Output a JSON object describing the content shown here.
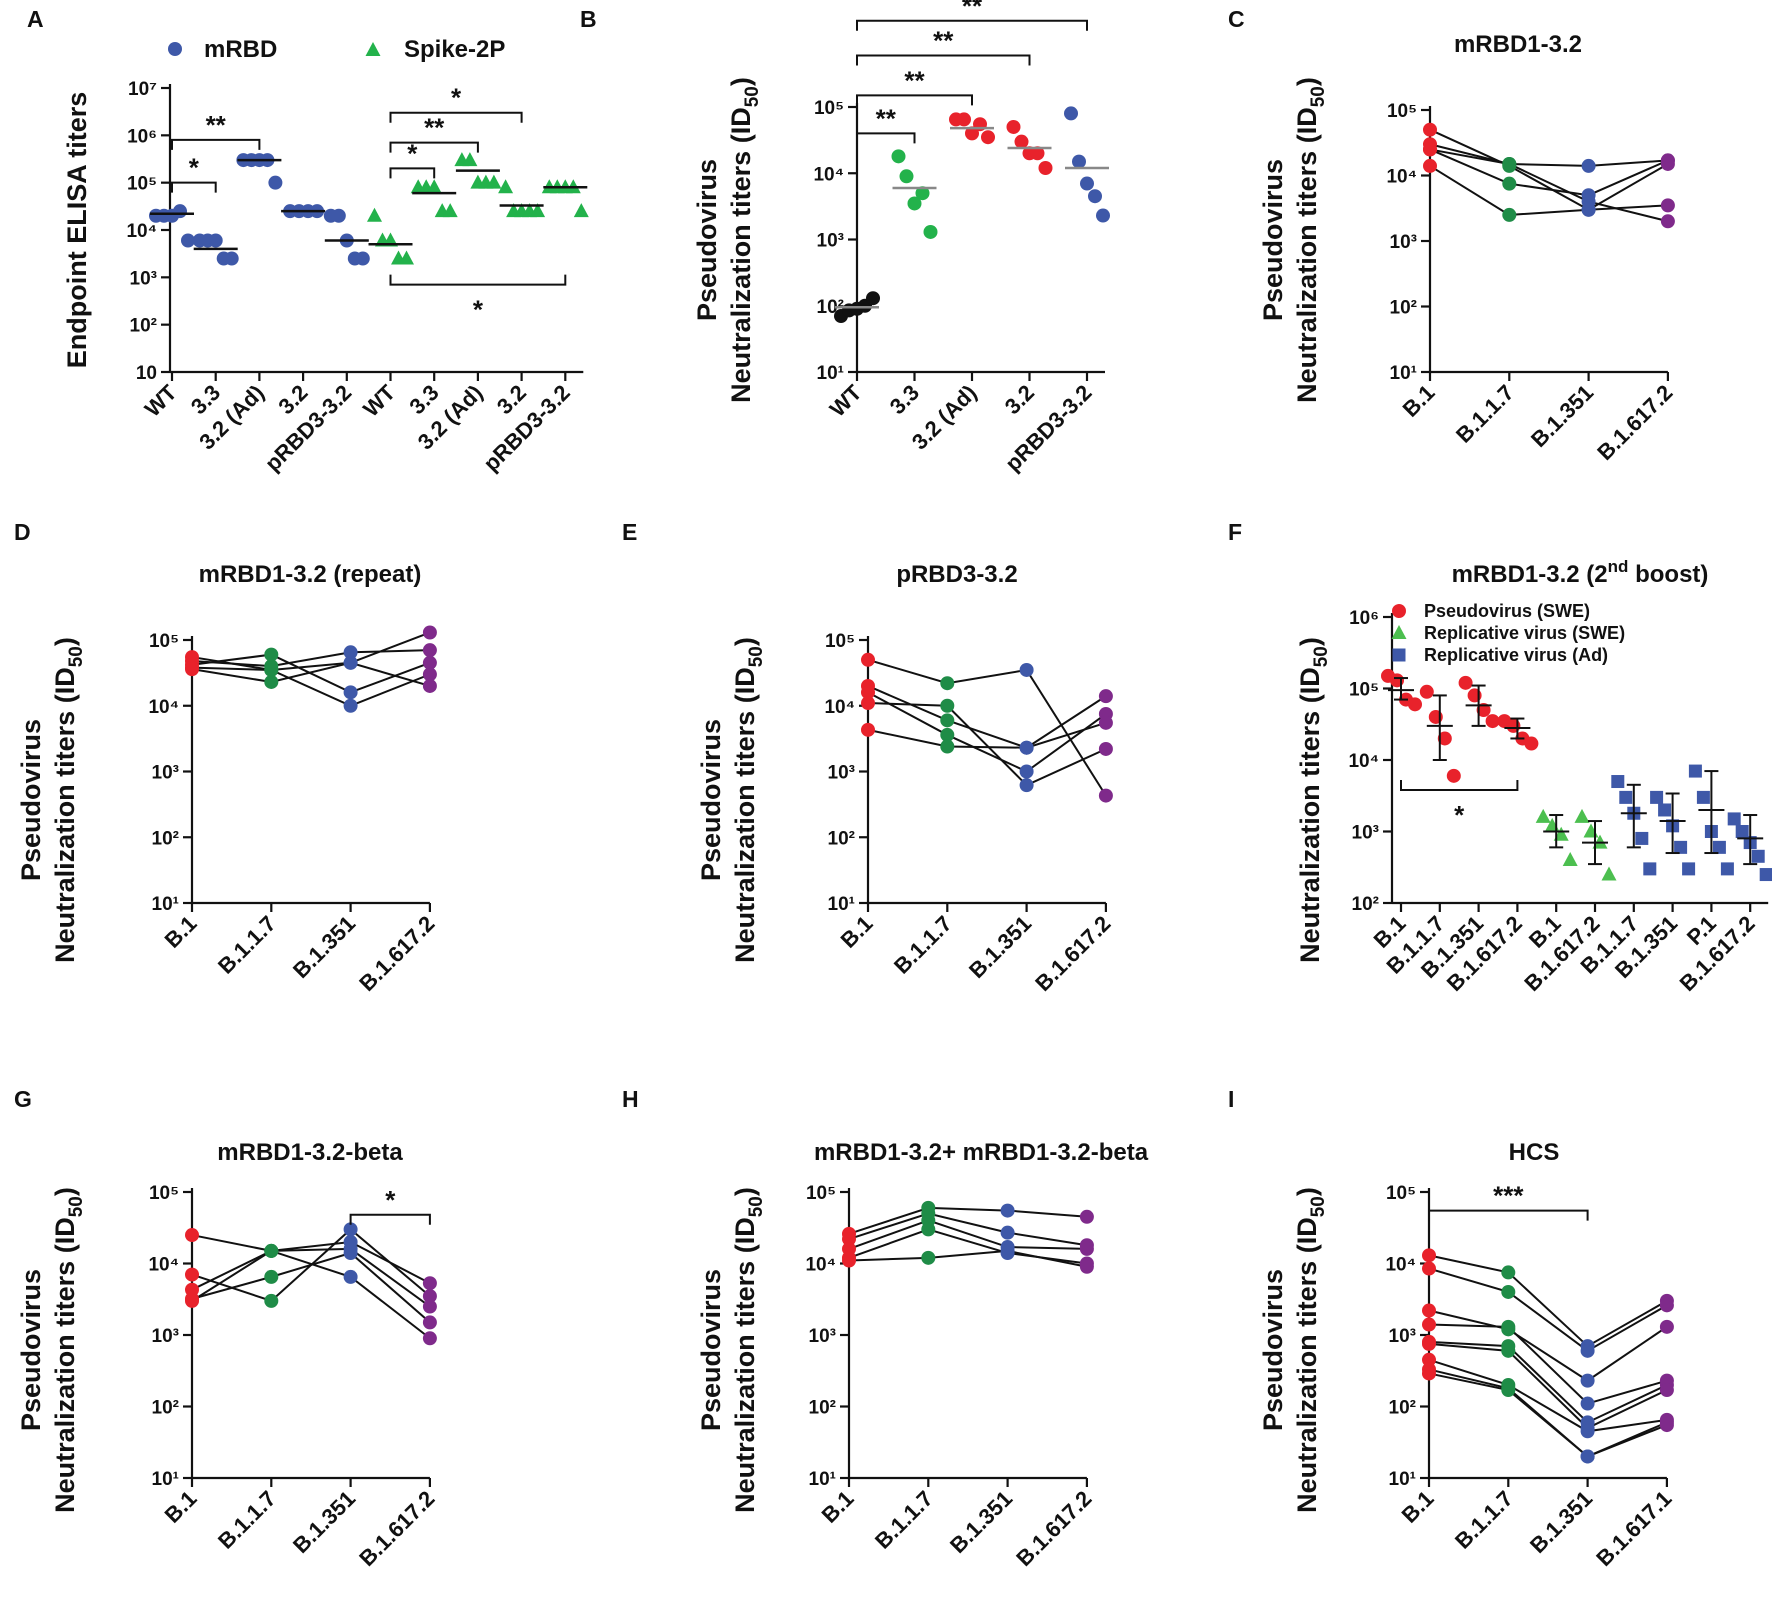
{
  "colors": {
    "red": "#e8222b",
    "green": "#23b24b",
    "darkgreen": "#1f8c47",
    "blue": "#3e58a8",
    "purple": "#7f2a8b",
    "black": "#111111",
    "gray": "#888888",
    "lightgreen": "#4cbf4f"
  },
  "chart_data": [
    {
      "panel": "A",
      "type": "scatter",
      "title": "",
      "ylabel": "Endpoint ELISA titers",
      "yscale": "log",
      "ylim": [
        10,
        10000000
      ],
      "yticks": [
        "10",
        "10²",
        "10³",
        "10⁴",
        "10⁵",
        "10⁶",
        "10⁷"
      ],
      "categories": [
        "WT",
        "3.3",
        "3.2 (Ad)",
        "3.2",
        "pRBD3-3.2",
        "WT",
        "3.3",
        "3.2 (Ad)",
        "3.2",
        "pRBD3-3.2"
      ],
      "legend": [
        "mRBD",
        "Spike-2P"
      ],
      "series": [
        {
          "name": "mRBD",
          "marker": "circle",
          "color": "blue",
          "groups": [
            {
              "cat": 0,
              "values": [
                20000,
                20000,
                20000,
                25000,
                6000
              ],
              "median": 22000
            },
            {
              "cat": 1,
              "values": [
                6000,
                6000,
                6000,
                2500,
                2500
              ],
              "median": 4000
            },
            {
              "cat": 2,
              "values": [
                300000,
                300000,
                300000,
                300000,
                100000
              ],
              "median": 300000
            },
            {
              "cat": 3,
              "values": [
                25000,
                25000,
                25000,
                25000
              ],
              "median": 25000
            },
            {
              "cat": 4,
              "values": [
                20000,
                20000,
                6000,
                2500,
                2500
              ],
              "median": 6000
            }
          ]
        },
        {
          "name": "Spike-2P",
          "marker": "triangle",
          "color": "green",
          "groups": [
            {
              "cat": 5,
              "values": [
                20000,
                6000,
                6000,
                2500,
                2500
              ],
              "median": 5000
            },
            {
              "cat": 6,
              "values": [
                80000,
                80000,
                80000,
                25000,
                25000
              ],
              "median": 60000
            },
            {
              "cat": 7,
              "values": [
                300000,
                300000,
                100000,
                100000,
                100000
              ],
              "median": 180000
            },
            {
              "cat": 8,
              "values": [
                80000,
                25000,
                25000,
                25000,
                25000
              ],
              "median": 33000
            },
            {
              "cat": 9,
              "values": [
                80000,
                80000,
                80000,
                80000,
                25000
              ],
              "median": 80000
            }
          ]
        }
      ],
      "sig": [
        {
          "from": 0,
          "to": 1,
          "level": 100000,
          "label": "*",
          "dir": "up"
        },
        {
          "from": 0,
          "to": 2,
          "level": 800000,
          "label": "**",
          "dir": "up"
        },
        {
          "from": 5,
          "to": 6,
          "level": 200000,
          "label": "*",
          "dir": "up"
        },
        {
          "from": 5,
          "to": 7,
          "level": 700000,
          "label": "**",
          "dir": "up"
        },
        {
          "from": 5,
          "to": 8,
          "level": 3000000,
          "label": "*",
          "dir": "up"
        },
        {
          "from": 5,
          "to": 9,
          "level": 700,
          "label": "*",
          "dir": "down"
        }
      ]
    },
    {
      "panel": "B",
      "type": "scatter",
      "title": "",
      "ylabel": [
        "Pseudovirus",
        "Neutralization titers (ID",
        "50",
        ")"
      ],
      "yscale": "log",
      "ylim": [
        10,
        100000
      ],
      "yticks": [
        "10¹",
        "10²",
        "10³",
        "10⁴",
        "10⁵"
      ],
      "categories": [
        "WT",
        "3.3",
        "3.2 (Ad)",
        "3.2",
        "pRBD3-3.2"
      ],
      "series": [
        {
          "name": "WT",
          "color": "black",
          "groups": [
            {
              "cat": 0,
              "values": [
                70,
                85,
                90,
                100,
                130
              ],
              "median": 95
            }
          ]
        },
        {
          "name": "3.3",
          "color": "green",
          "groups": [
            {
              "cat": 1,
              "values": [
                18000,
                9000,
                3500,
                5000,
                1300
              ],
              "median": 6000
            }
          ]
        },
        {
          "name": "3.2 (Ad)",
          "color": "red",
          "groups": [
            {
              "cat": 2,
              "values": [
                65000,
                65000,
                40000,
                55000,
                35000
              ],
              "median": 48000
            }
          ]
        },
        {
          "name": "3.2",
          "color": "red",
          "groups": [
            {
              "cat": 3,
              "values": [
                50000,
                30000,
                20000,
                20000,
                12000
              ],
              "median": 24000
            }
          ]
        },
        {
          "name": "pRBD3-3.2",
          "color": "blue",
          "groups": [
            {
              "cat": 4,
              "values": [
                80000,
                15000,
                7000,
                4500,
                2300
              ],
              "median": 12000
            }
          ]
        }
      ],
      "sig": [
        {
          "from": 0,
          "to": 1,
          "level": 40000,
          "label": "**",
          "dir": "up"
        },
        {
          "from": 0,
          "to": 2,
          "level": 150000,
          "label": "**",
          "dir": "up"
        },
        {
          "from": 0,
          "to": 3,
          "level": 600000,
          "label": "**",
          "dir": "up"
        },
        {
          "from": 0,
          "to": 4,
          "level": 2000000,
          "label": "**",
          "dir": "up"
        }
      ]
    },
    {
      "panel": "C",
      "type": "line",
      "title": "mRBD1-3.2",
      "ylabel": [
        "Pseudovirus",
        "Neutralization titers (ID",
        "50",
        ")"
      ],
      "yscale": "log",
      "ylim": [
        10,
        100000
      ],
      "yticks": [
        "10¹",
        "10²",
        "10³",
        "10⁴",
        "10⁵"
      ],
      "categories": [
        "B.1",
        "B.1.1.7",
        "B.1.351",
        "B.1.617.2"
      ],
      "catColors": [
        "red",
        "darkgreen",
        "blue",
        "purple"
      ],
      "series": [
        {
          "values": [
            50000,
            14000,
            3000,
            3500
          ]
        },
        {
          "values": [
            30000,
            15000,
            4000,
            2000
          ]
        },
        {
          "values": [
            25000,
            7500,
            5000,
            17000
          ]
        },
        {
          "values": [
            14000,
            2500,
            3000,
            15000
          ]
        },
        {
          "values": [
            25000,
            15000,
            14000,
            17000
          ]
        }
      ]
    },
    {
      "panel": "D",
      "type": "line",
      "title": "mRBD1-3.2 (repeat)",
      "ylabel": [
        "Pseudovirus",
        "Neutralization titers (ID",
        "50",
        ")"
      ],
      "yscale": "log",
      "ylim": [
        10,
        100000
      ],
      "yticks": [
        "10¹",
        "10²",
        "10³",
        "10⁴",
        "10⁵"
      ],
      "categories": [
        "B.1",
        "B.1.1.7",
        "B.1.351",
        "B.1.617.2"
      ],
      "catColors": [
        "red",
        "darkgreen",
        "blue",
        "purple"
      ],
      "series": [
        {
          "values": [
            55000,
            35000,
            45000,
            130000
          ]
        },
        {
          "values": [
            48000,
            40000,
            65000,
            70000
          ]
        },
        {
          "values": [
            42000,
            60000,
            16000,
            45000
          ]
        },
        {
          "values": [
            38000,
            35000,
            10000,
            30000
          ]
        },
        {
          "values": [
            36000,
            23000,
            45000,
            20000
          ]
        }
      ]
    },
    {
      "panel": "E",
      "type": "line",
      "title": "pRBD3-3.2",
      "ylabel": [
        "Pseudovirus",
        "Neutralization titers (ID",
        "50",
        ")"
      ],
      "yscale": "log",
      "ylim": [
        10,
        100000
      ],
      "yticks": [
        "10¹",
        "10²",
        "10³",
        "10⁴",
        "10⁵"
      ],
      "categories": [
        "B.1",
        "B.1.1.7",
        "B.1.351",
        "B.1.617.2"
      ],
      "catColors": [
        "red",
        "darkgreen",
        "blue",
        "purple"
      ],
      "series": [
        {
          "values": [
            50000,
            22000,
            35000,
            430
          ]
        },
        {
          "values": [
            20000,
            6000,
            2300,
            14000
          ]
        },
        {
          "values": [
            16000,
            3600,
            1000,
            7500
          ]
        },
        {
          "values": [
            11000,
            10000,
            620,
            2200
          ]
        },
        {
          "values": [
            4300,
            2400,
            2300,
            5500
          ]
        }
      ]
    },
    {
      "panel": "F",
      "type": "scatter",
      "title": "mRBD1-3.2 (2",
      "title_sup": "nd",
      "title_end": " boost)",
      "ylabel": "Neutralization titers (ID",
      "ylabel_sub": "50",
      "ylabel_end": ")",
      "yscale": "log",
      "ylim": [
        100,
        1000000
      ],
      "yticks": [
        "10²",
        "10³",
        "10⁴",
        "10⁵",
        "10⁶"
      ],
      "categories": [
        "B.1",
        "B.1.1.7",
        "B.1.351",
        "B.1.617.2",
        "B.1",
        "B.1.617.2",
        "B.1.1.7",
        "B.1.351",
        "P.1",
        "B.1.617.2"
      ],
      "legend": [
        "Pseudovirus (SWE)",
        "Replicative virus (SWE)",
        "Replicative virus (Ad)"
      ],
      "series": [
        {
          "name": "Pseudovirus (SWE)",
          "marker": "circle",
          "color": "red",
          "groups": [
            {
              "cat": 0,
              "values": [
                150000,
                130000,
                70000,
                60000
              ],
              "mean": 95000,
              "sd": [
                70000,
                140000
              ]
            },
            {
              "cat": 1,
              "values": [
                90000,
                40000,
                20000,
                6000
              ],
              "mean": 30000,
              "sd": [
                10000,
                80000
              ]
            },
            {
              "cat": 2,
              "values": [
                120000,
                80000,
                50000,
                35000
              ],
              "mean": 58000,
              "sd": [
                30000,
                110000
              ]
            },
            {
              "cat": 3,
              "values": [
                35000,
                30000,
                20000,
                17000
              ],
              "mean": 28000,
              "sd": [
                20000,
                38000
              ]
            }
          ]
        },
        {
          "name": "Replicative virus (SWE)",
          "marker": "triangle",
          "color": "lightgreen",
          "groups": [
            {
              "cat": 4,
              "values": [
                1600,
                1200,
                900,
                400
              ],
              "mean": 1000,
              "sd": [
                600,
                1700
              ]
            },
            {
              "cat": 5,
              "values": [
                1600,
                1000,
                700,
                250
              ],
              "mean": 700,
              "sd": [
                350,
                1400
              ]
            }
          ]
        },
        {
          "name": "Replicative virus (Ad)",
          "marker": "square",
          "color": "blue",
          "groups": [
            {
              "cat": 6,
              "values": [
                5000,
                3000,
                1800,
                800,
                300
              ],
              "mean": 1800,
              "sd": [
                600,
                4500
              ]
            },
            {
              "cat": 7,
              "values": [
                3000,
                2000,
                1200,
                600,
                300
              ],
              "mean": 1400,
              "sd": [
                500,
                3400
              ]
            },
            {
              "cat": 8,
              "values": [
                7000,
                3000,
                1000,
                600,
                300
              ],
              "mean": 2000,
              "sd": [
                500,
                7000
              ]
            },
            {
              "cat": 9,
              "values": [
                1500,
                1000,
                700,
                450,
                250
              ],
              "mean": 800,
              "sd": [
                350,
                1700
              ]
            }
          ]
        }
      ],
      "sig": [
        {
          "from": 0,
          "to": 3,
          "level": 3800,
          "label": "*",
          "dir": "down"
        }
      ]
    },
    {
      "panel": "G",
      "type": "line",
      "title": "mRBD1-3.2-beta",
      "ylabel": [
        "Pseudovirus",
        "Neutralization titers (ID",
        "50",
        ")"
      ],
      "yscale": "log",
      "ylim": [
        10,
        100000
      ],
      "yticks": [
        "10¹",
        "10²",
        "10³",
        "10⁴",
        "10⁵"
      ],
      "categories": [
        "B.1",
        "B.1.1.7",
        "B.1.351",
        "B.1.617.2"
      ],
      "catColors": [
        "red",
        "darkgreen",
        "blue",
        "purple"
      ],
      "series": [
        {
          "values": [
            25000,
            15000,
            20000,
            5300
          ]
        },
        {
          "values": [
            7000,
            3000,
            30000,
            3500
          ]
        },
        {
          "values": [
            4300,
            15000,
            16000,
            2500
          ]
        },
        {
          "values": [
            3200,
            6500,
            14000,
            1500
          ]
        },
        {
          "values": [
            3000,
            15000,
            6500,
            900
          ]
        }
      ],
      "sig": [
        {
          "from": 2,
          "to": 3,
          "level": 48000,
          "label": "*",
          "dir": "up"
        }
      ]
    },
    {
      "panel": "H",
      "type": "line",
      "title": "mRBD1-3.2+ mRBD1-3.2-beta",
      "ylabel": [
        "Pseudovirus",
        "Neutralization titers (ID",
        "50",
        ")"
      ],
      "yscale": "log",
      "ylim": [
        10,
        100000
      ],
      "yticks": [
        "10¹",
        "10²",
        "10³",
        "10⁴",
        "10⁵"
      ],
      "categories": [
        "B.1",
        "B.1.1.7",
        "B.1.351",
        "B.1.617.2"
      ],
      "catColors": [
        "red",
        "darkgreen",
        "blue",
        "purple"
      ],
      "series": [
        {
          "values": [
            26000,
            60000,
            55000,
            45000
          ]
        },
        {
          "values": [
            22000,
            50000,
            27000,
            18000
          ]
        },
        {
          "values": [
            16000,
            40000,
            17000,
            16000
          ]
        },
        {
          "values": [
            12000,
            30000,
            14000,
            10000
          ]
        },
        {
          "values": [
            11000,
            12000,
            15000,
            9000
          ]
        }
      ]
    },
    {
      "panel": "I",
      "type": "line",
      "title": "HCS",
      "ylabel": [
        "Pseudovirus",
        "Neutralization titers (ID",
        "50",
        ")"
      ],
      "yscale": "log",
      "ylim": [
        10,
        100000
      ],
      "yticks": [
        "10¹",
        "10²",
        "10³",
        "10⁴",
        "10⁵"
      ],
      "categories": [
        "B.1",
        "B.1.1.7",
        "B.1.351",
        "B.1.617.1"
      ],
      "catColors": [
        "red",
        "darkgreen",
        "blue",
        "purple"
      ],
      "series": [
        {
          "values": [
            13000,
            7500,
            700,
            3000
          ]
        },
        {
          "values": [
            8500,
            4000,
            600,
            2600
          ]
        },
        {
          "values": [
            2200,
            1200,
            230,
            1300
          ]
        },
        {
          "values": [
            1400,
            1300,
            110,
            230
          ]
        },
        {
          "values": [
            800,
            700,
            60,
            200
          ]
        },
        {
          "values": [
            750,
            600,
            50,
            170
          ]
        },
        {
          "values": [
            450,
            200,
            45,
            65
          ]
        },
        {
          "values": [
            330,
            180,
            20,
            55
          ]
        },
        {
          "values": [
            290,
            170,
            20,
            60
          ]
        }
      ],
      "sig": [
        {
          "from": 0,
          "to": 2,
          "level": 55000,
          "label": "***",
          "dir": "up"
        }
      ]
    }
  ]
}
